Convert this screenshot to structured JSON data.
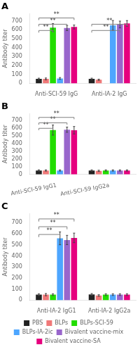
{
  "chart_data": [
    {
      "type": "bar",
      "title": "A",
      "categories": [
        "Anti-SCI-59 IgG",
        "Anti-IA-2 IgG"
      ],
      "series": [
        {
          "name": "PBS",
          "color": "#222222",
          "values": [
            50,
            50
          ],
          "errors": [
            8,
            8
          ]
        },
        {
          "name": "BLPs",
          "color": "#f07878",
          "values": [
            50,
            40
          ],
          "errors": [
            10,
            7
          ]
        },
        {
          "name": "BLPs-SCI-59",
          "color": "#22dd00",
          "values": [
            625,
            0
          ],
          "errors": [
            45,
            0
          ]
        },
        {
          "name": "BLPs-IA-2ic",
          "color": "#4da6ff",
          "values": [
            55,
            650
          ],
          "errors": [
            10,
            55
          ]
        },
        {
          "name": "Bivalent vaccine-mix",
          "color": "#9966cc",
          "values": [
            620,
            660
          ],
          "errors": [
            28,
            38
          ]
        },
        {
          "name": "Bivalent vaccine-SA",
          "color": "#e6007e",
          "values": [
            632,
            672
          ],
          "errors": [
            22,
            32
          ]
        }
      ],
      "ylabel": "Antibody titer",
      "ylim": [
        0,
        780
      ],
      "yticks": [
        0,
        100,
        200,
        300,
        400,
        500,
        600,
        700
      ],
      "grid": false,
      "annotations": [
        {
          "text": "**",
          "category": "Anti-SCI-59 IgG",
          "from": "PBS",
          "to": "BLPs-SCI-59"
        },
        {
          "text": "**",
          "category": "Anti-SCI-59 IgG",
          "from": "PBS",
          "to": "Bivalent vaccine-mix"
        },
        {
          "text": "**",
          "category": "Anti-SCI-59 IgG",
          "from": "PBS",
          "to": "Bivalent vaccine-SA"
        },
        {
          "text": "**",
          "category": "Anti-IA-2 IgG",
          "from": "PBS",
          "to": "Bivalent vaccine-mix"
        },
        {
          "text": "**",
          "category": "Anti-IA-2 IgG",
          "from": "PBS",
          "to": "Bivalent vaccine-SA"
        }
      ]
    },
    {
      "type": "bar",
      "title": "B",
      "categories": [
        "Anti-SCI-59 IgG1",
        "Anti-SCI-59 IgG2a"
      ],
      "series": [
        {
          "name": "PBS",
          "color": "#222222",
          "values": [
            50,
            50
          ],
          "errors": [
            8,
            8
          ]
        },
        {
          "name": "BLPs",
          "color": "#f07878",
          "values": [
            50,
            45
          ],
          "errors": [
            8,
            8
          ]
        },
        {
          "name": "BLPs-SCI-59",
          "color": "#22dd00",
          "values": [
            570,
            50
          ],
          "errors": [
            65,
            8
          ]
        },
        {
          "name": "BLPs-IA-2ic",
          "color": "#4da6ff",
          "values": [
            50,
            50
          ],
          "errors": [
            8,
            8
          ]
        },
        {
          "name": "Bivalent vaccine-mix",
          "color": "#9966cc",
          "values": [
            575,
            50
          ],
          "errors": [
            33,
            8
          ]
        },
        {
          "name": "Bivalent vaccine-SA",
          "color": "#e6007e",
          "values": [
            568,
            50
          ],
          "errors": [
            48,
            8
          ]
        }
      ],
      "ylabel": "Antibody titer",
      "ylim": [
        0,
        780
      ],
      "yticks": [
        0,
        100,
        200,
        300,
        400,
        500,
        600,
        700
      ],
      "grid": false,
      "annotations": [
        {
          "text": "**",
          "category": "Anti-SCI-59 IgG1",
          "from": "PBS",
          "to": "BLPs-SCI-59"
        },
        {
          "text": "**",
          "category": "Anti-SCI-59 IgG1",
          "from": "PBS",
          "to": "Bivalent vaccine-mix"
        },
        {
          "text": "**",
          "category": "Anti-SCI-59 IgG1",
          "from": "PBS",
          "to": "Bivalent vaccine-SA"
        }
      ]
    },
    {
      "type": "bar",
      "title": "C",
      "categories": [
        "Anti-IA-2 IgG1",
        "Anti-IA-2 IgG2a"
      ],
      "series": [
        {
          "name": "PBS",
          "color": "#222222",
          "values": [
            50,
            52
          ],
          "errors": [
            8,
            8
          ]
        },
        {
          "name": "BLPs",
          "color": "#f07878",
          "values": [
            50,
            42
          ],
          "errors": [
            10,
            7
          ]
        },
        {
          "name": "BLPs-SCI-59",
          "color": "#22dd00",
          "values": [
            50,
            50
          ],
          "errors": [
            8,
            8
          ]
        },
        {
          "name": "BLPs-IA-2ic",
          "color": "#4da6ff",
          "values": [
            558,
            50
          ],
          "errors": [
            58,
            8
          ]
        },
        {
          "name": "Bivalent vaccine-mix",
          "color": "#9966cc",
          "values": [
            543,
            50
          ],
          "errors": [
            42,
            8
          ]
        },
        {
          "name": "Bivalent vaccine-SA",
          "color": "#e6007e",
          "values": [
            562,
            50
          ],
          "errors": [
            43,
            8
          ]
        }
      ],
      "ylabel": "Antibody titer",
      "ylim": [
        0,
        780
      ],
      "yticks": [
        0,
        100,
        200,
        300,
        400,
        500,
        600,
        700
      ],
      "grid": false,
      "legend": "bottom",
      "annotations": [
        {
          "text": "**",
          "category": "Anti-IA-2 IgG1",
          "from": "PBS",
          "to": "BLPs-IA-2ic"
        },
        {
          "text": "**",
          "category": "Anti-IA-2 IgG1",
          "from": "PBS",
          "to": "Bivalent vaccine-mix"
        },
        {
          "text": "**",
          "category": "Anti-IA-2 IgG1",
          "from": "PBS",
          "to": "Bivalent vaccine-SA"
        }
      ]
    }
  ]
}
